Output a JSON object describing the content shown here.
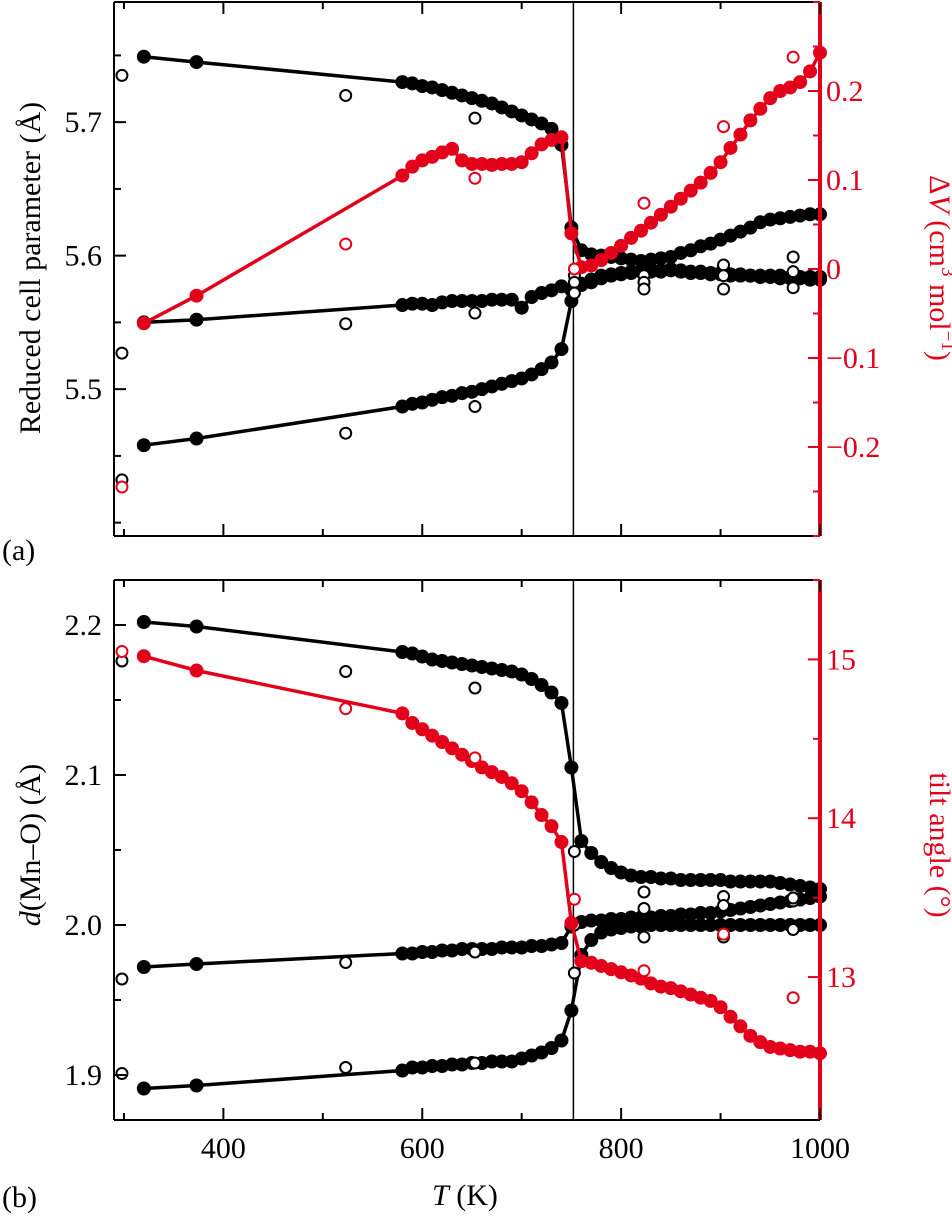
{
  "colors": {
    "black": "#000000",
    "red": "#e2001a"
  },
  "xaxis": {
    "label_italic": "T",
    "label_rest": " (K)",
    "range": [
      290,
      1000
    ],
    "ticks": [
      400,
      600,
      800,
      1000
    ],
    "tick_labels": [
      "400",
      "600",
      "800",
      "1000"
    ]
  },
  "transition_T": 752,
  "chart_data": [
    {
      "panel": "(a)",
      "type": "scatter",
      "ylabel_left": "Reduced cell parameter (Å)",
      "ylabel_right": {
        "prefix": "Δ",
        "var": "V",
        "unit_a": " (cm",
        "sup1": "3",
        "unit_b": " mol",
        "sup2": "−1",
        "unit_c": ")"
      },
      "ylim_left": [
        5.39,
        5.79
      ],
      "ylim_right": [
        -0.3,
        0.3
      ],
      "yticks_left": [
        5.5,
        5.6,
        5.7
      ],
      "ytick_labels_left": [
        "5.5",
        "5.6",
        "5.7"
      ],
      "yticks_right": [
        -0.2,
        -0.1,
        0,
        0.1,
        0.2
      ],
      "ytick_labels_right": [
        "−0.2",
        "−0.1",
        "0",
        "0.1",
        "0.2"
      ],
      "series": [
        {
          "name": "reduced cell parameter a",
          "axis": "left",
          "marker": "filled",
          "x": [
            320,
            373,
            580,
            590,
            600,
            610,
            620,
            630,
            640,
            650,
            660,
            670,
            680,
            690,
            700,
            710,
            720,
            730,
            740,
            750,
            760,
            770,
            780,
            790,
            800,
            810,
            820,
            830,
            840,
            850,
            860,
            870,
            880,
            890,
            900,
            910,
            920,
            930,
            940,
            950,
            960,
            970,
            980,
            990,
            1000
          ],
          "y": [
            5.749,
            5.745,
            5.73,
            5.729,
            5.727,
            5.726,
            5.724,
            5.722,
            5.72,
            5.718,
            5.716,
            5.714,
            5.711,
            5.708,
            5.705,
            5.702,
            5.699,
            5.695,
            5.683,
            5.621,
            5.604,
            5.601,
            5.6,
            5.599,
            5.598,
            5.597,
            5.596,
            5.597,
            5.598,
            5.599,
            5.602,
            5.604,
            5.607,
            5.609,
            5.612,
            5.615,
            5.618,
            5.621,
            5.625,
            5.627,
            5.628,
            5.629,
            5.63,
            5.631,
            5.631
          ]
        },
        {
          "name": "reduced cell parameter b",
          "axis": "left",
          "marker": "filled",
          "x": [
            320,
            373,
            580,
            590,
            600,
            610,
            620,
            630,
            640,
            650,
            660,
            670,
            680,
            690,
            700,
            710,
            720,
            730,
            740,
            750,
            760,
            770,
            780,
            790,
            800,
            810,
            820,
            830,
            840,
            850,
            860,
            870,
            880,
            890,
            900,
            910,
            920,
            930,
            940,
            950,
            960,
            970,
            980,
            990,
            1000
          ],
          "y": [
            5.55,
            5.552,
            5.563,
            5.564,
            5.564,
            5.563,
            5.565,
            5.566,
            5.566,
            5.566,
            5.566,
            5.567,
            5.567,
            5.567,
            5.561,
            5.569,
            5.572,
            5.574,
            5.577,
            5.574,
            5.579,
            5.582,
            5.585,
            5.586,
            5.587,
            5.588,
            5.589,
            5.59,
            5.589,
            5.59,
            5.589,
            5.588,
            5.588,
            5.587,
            5.587,
            5.586,
            5.586,
            5.585,
            5.585,
            5.585,
            5.585,
            5.584,
            5.584,
            5.584,
            5.584
          ]
        },
        {
          "name": "reduced cell parameter c",
          "axis": "left",
          "marker": "filled",
          "x": [
            320,
            373,
            580,
            590,
            600,
            610,
            620,
            630,
            640,
            650,
            660,
            670,
            680,
            690,
            700,
            710,
            720,
            730,
            740,
            750,
            760,
            770,
            780,
            790,
            800,
            810,
            820,
            830,
            840,
            850,
            860,
            870,
            880,
            890,
            900,
            910,
            920,
            930,
            940,
            950,
            960,
            970,
            980,
            990,
            1000
          ],
          "y": [
            5.458,
            5.463,
            5.487,
            5.489,
            5.49,
            5.492,
            5.494,
            5.495,
            5.497,
            5.498,
            5.5,
            5.502,
            5.504,
            5.506,
            5.508,
            5.511,
            5.515,
            5.52,
            5.53,
            5.566,
            5.578,
            5.58,
            5.583,
            5.585,
            5.586,
            5.587,
            5.588,
            5.588,
            5.588,
            5.589,
            5.588,
            5.587,
            5.587,
            5.586,
            5.586,
            5.585,
            5.585,
            5.585,
            5.584,
            5.584,
            5.583,
            5.583,
            5.583,
            5.582,
            5.582
          ]
        },
        {
          "name": "reduced cell parameter (second data set)",
          "axis": "left",
          "marker": "open",
          "x": [
            298,
            298,
            298,
            523,
            523,
            523,
            653,
            653,
            653,
            753,
            753,
            753,
            823,
            823,
            823,
            903,
            903,
            903,
            973,
            973,
            973
          ],
          "y": [
            5.735,
            5.527,
            5.432,
            5.72,
            5.549,
            5.467,
            5.703,
            5.557,
            5.487,
            5.585,
            5.58,
            5.572,
            5.585,
            5.58,
            5.575,
            5.593,
            5.585,
            5.575,
            5.599,
            5.588,
            5.576
          ]
        },
        {
          "name": "ΔV",
          "axis": "right",
          "marker": "filled",
          "x": [
            320,
            373,
            580,
            590,
            600,
            610,
            620,
            630,
            640,
            650,
            660,
            670,
            680,
            690,
            700,
            710,
            720,
            730,
            740,
            750,
            760,
            770,
            780,
            790,
            800,
            810,
            820,
            830,
            840,
            850,
            860,
            870,
            880,
            890,
            900,
            910,
            920,
            930,
            940,
            950,
            960,
            970,
            980,
            990,
            1000
          ],
          "y": [
            -0.061,
            -0.03,
            0.105,
            0.115,
            0.122,
            0.126,
            0.131,
            0.135,
            0.122,
            0.118,
            0.118,
            0.117,
            0.118,
            0.118,
            0.12,
            0.13,
            0.14,
            0.145,
            0.148,
            0.04,
            0.002,
            0.004,
            0.01,
            0.018,
            0.026,
            0.035,
            0.043,
            0.052,
            0.061,
            0.07,
            0.079,
            0.088,
            0.097,
            0.108,
            0.12,
            0.136,
            0.151,
            0.167,
            0.18,
            0.192,
            0.2,
            0.204,
            0.21,
            0.222,
            0.243
          ]
        },
        {
          "name": "ΔV (second data set)",
          "axis": "right",
          "marker": "open",
          "x": [
            298,
            523,
            653,
            753,
            823,
            903,
            973
          ],
          "y": [
            -0.245,
            0.028,
            0.102,
            0.0,
            0.074,
            0.16,
            0.238
          ]
        }
      ]
    },
    {
      "panel": "(b)",
      "type": "scatter",
      "ylabel_left_italic": "d",
      "ylabel_left_rest": "(Mn–O) (Å)",
      "ylabel_right": "tilt angle (°)",
      "ylim_left": [
        1.87,
        2.23
      ],
      "ylim_right": [
        12.1,
        15.5
      ],
      "yticks_left": [
        1.9,
        2.0,
        2.1,
        2.2
      ],
      "ytick_labels_left": [
        "1.9",
        "2.0",
        "2.1",
        "2.2"
      ],
      "yticks_right": [
        13,
        14,
        15
      ],
      "ytick_labels_right": [
        "13",
        "14",
        "15"
      ],
      "series": [
        {
          "name": "d(Mn–O) long",
          "axis": "left",
          "marker": "filled",
          "x": [
            320,
            373,
            580,
            590,
            600,
            610,
            620,
            630,
            640,
            650,
            660,
            670,
            680,
            690,
            700,
            710,
            720,
            730,
            740,
            750,
            760,
            770,
            780,
            790,
            800,
            810,
            820,
            830,
            840,
            850,
            860,
            870,
            880,
            890,
            900,
            910,
            920,
            930,
            940,
            950,
            960,
            970,
            980,
            990,
            1000
          ],
          "y": [
            2.202,
            2.199,
            2.182,
            2.181,
            2.179,
            2.177,
            2.176,
            2.175,
            2.174,
            2.173,
            2.172,
            2.171,
            2.17,
            2.169,
            2.167,
            2.164,
            2.16,
            2.155,
            2.148,
            2.105,
            2.056,
            2.048,
            2.042,
            2.038,
            2.035,
            2.033,
            2.032,
            2.032,
            2.031,
            2.031,
            2.03,
            2.03,
            2.03,
            2.03,
            2.03,
            2.029,
            2.029,
            2.029,
            2.029,
            2.029,
            2.028,
            2.027,
            2.026,
            2.025,
            2.024
          ]
        },
        {
          "name": "d(Mn–O) middle",
          "axis": "left",
          "marker": "filled",
          "x": [
            320,
            373,
            580,
            590,
            600,
            610,
            620,
            630,
            640,
            650,
            660,
            670,
            680,
            690,
            700,
            710,
            720,
            730,
            740,
            750,
            760,
            770,
            780,
            790,
            800,
            810,
            820,
            830,
            840,
            850,
            860,
            870,
            880,
            890,
            900,
            910,
            920,
            930,
            940,
            950,
            960,
            970,
            980,
            990,
            1000
          ],
          "y": [
            1.972,
            1.974,
            1.981,
            1.981,
            1.982,
            1.982,
            1.983,
            1.983,
            1.984,
            1.984,
            1.984,
            1.984,
            1.985,
            1.985,
            1.985,
            1.986,
            1.986,
            1.987,
            1.988,
            1.999,
            2.002,
            2.003,
            2.003,
            2.004,
            2.004,
            2.005,
            2.005,
            2.005,
            2.006,
            2.006,
            2.007,
            2.007,
            2.008,
            2.008,
            2.009,
            2.01,
            2.011,
            2.012,
            2.013,
            2.014,
            2.015,
            2.016,
            2.017,
            2.018,
            2.019
          ]
        },
        {
          "name": "d(Mn–O) short",
          "axis": "left",
          "marker": "filled",
          "x": [
            320,
            373,
            580,
            590,
            600,
            610,
            620,
            630,
            640,
            650,
            660,
            670,
            680,
            690,
            700,
            710,
            720,
            730,
            740,
            750,
            760,
            770,
            780,
            790,
            800,
            810,
            820,
            830,
            840,
            850,
            860,
            870,
            880,
            890,
            900,
            910,
            920,
            930,
            940,
            950,
            960,
            970,
            980,
            990,
            1000
          ],
          "y": [
            1.891,
            1.893,
            1.903,
            1.905,
            1.905,
            1.906,
            1.906,
            1.907,
            1.907,
            1.908,
            1.908,
            1.909,
            1.909,
            1.909,
            1.911,
            1.913,
            1.915,
            1.918,
            1.923,
            1.943,
            1.98,
            1.99,
            1.995,
            1.997,
            1.998,
            1.999,
            1.999,
            2.0,
            2.0,
            2.0,
            2.0,
            2.0,
            2.0,
            2.0,
            2.0,
            2.0,
            2.0,
            2.0,
            2.0,
            2.0,
            2.0,
            2.0,
            2.0,
            2.0,
            2.0
          ]
        },
        {
          "name": "d(Mn–O) (second data set)",
          "axis": "left",
          "marker": "open",
          "x": [
            298,
            298,
            298,
            523,
            523,
            523,
            653,
            653,
            653,
            753,
            753,
            753,
            823,
            823,
            823,
            903,
            903,
            903,
            973,
            973,
            973
          ],
          "y": [
            2.176,
            1.964,
            1.901,
            2.169,
            1.975,
            1.905,
            2.158,
            1.982,
            1.908,
            2.049,
            2.0,
            1.968,
            2.022,
            2.011,
            1.992,
            2.019,
            2.013,
            1.992,
            2.016,
            2.018,
            1.997
          ]
        },
        {
          "name": "tilt angle",
          "axis": "right",
          "marker": "filled",
          "x": [
            320,
            373,
            580,
            590,
            600,
            610,
            620,
            630,
            640,
            650,
            660,
            670,
            680,
            690,
            700,
            710,
            720,
            730,
            740,
            750,
            760,
            770,
            780,
            790,
            800,
            810,
            820,
            830,
            840,
            850,
            860,
            870,
            880,
            890,
            900,
            910,
            920,
            930,
            940,
            950,
            960,
            970,
            980,
            990,
            1000
          ],
          "y": [
            15.02,
            14.93,
            14.66,
            14.6,
            14.56,
            14.52,
            14.48,
            14.44,
            14.4,
            14.36,
            14.32,
            14.29,
            14.26,
            14.22,
            14.17,
            14.1,
            14.02,
            13.95,
            13.85,
            13.34,
            13.1,
            13.09,
            13.07,
            13.05,
            13.03,
            13.01,
            12.99,
            12.96,
            12.94,
            12.93,
            12.91,
            12.89,
            12.87,
            12.85,
            12.81,
            12.75,
            12.69,
            12.63,
            12.59,
            12.56,
            12.55,
            12.54,
            12.53,
            12.53,
            12.52
          ]
        },
        {
          "name": "tilt angle (second data set)",
          "axis": "right",
          "marker": "open",
          "x": [
            298,
            523,
            653,
            753,
            823,
            903,
            973
          ],
          "y": [
            15.05,
            14.69,
            14.38,
            13.49,
            13.04,
            13.27,
            12.87
          ]
        }
      ]
    }
  ]
}
